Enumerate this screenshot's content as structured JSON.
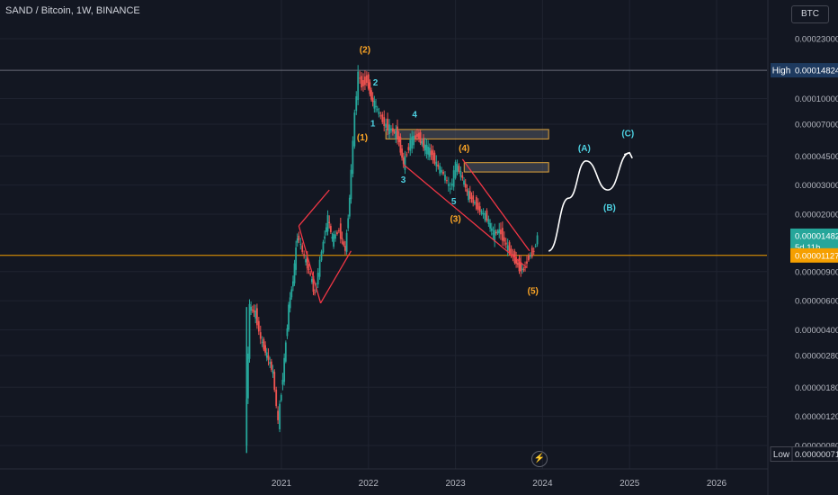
{
  "header": {
    "symbol_title": "SAND / Bitcoin, 1W, BINANCE",
    "currency_button": "BTC"
  },
  "colors": {
    "background": "#131722",
    "grid": "#1f2330",
    "up_candle": "#26a69a",
    "down_candle": "#ef5350",
    "axis_text": "#b2b5be",
    "current_price": "#26a69a",
    "support_line": "#f59f00",
    "wave_orange": "#ffa726",
    "wave_teal": "#4dd0e1",
    "wedge_red": "#f23645",
    "resistance_zone": "#e0a43c"
  },
  "chart_data": {
    "type": "candlestick",
    "timeframe": "1W",
    "exchange": "BINANCE",
    "log_scale": true,
    "grid": true,
    "y_ticks": [
      "0.00023000",
      "0.00010000",
      "0.00007000",
      "0.00004500",
      "0.00003000",
      "0.00002000",
      "0.00000900",
      "0.00000600",
      "0.00000400",
      "0.00000280",
      "0.00000180",
      "0.00000120",
      "0.00000080"
    ],
    "y_tick_values": [
      0.00023,
      0.0001,
      7e-05,
      4.5e-05,
      3e-05,
      2e-05,
      9e-06,
      6e-06,
      4e-06,
      2.8e-06,
      1.8e-06,
      1.2e-06,
      8e-07
    ],
    "x_ticks": [
      "2021",
      "2022",
      "2023",
      "2024",
      "2025",
      "2026"
    ],
    "x_tick_years": [
      2021,
      2022,
      2023,
      2024,
      2025,
      2026
    ],
    "high": {
      "label": "High",
      "value": "0.00014824",
      "num": 0.00014824
    },
    "low": {
      "label": "Low",
      "value": "0.00000071",
      "num": 7.1e-07
    },
    "current_price": {
      "value": "0.00001482",
      "countdown": "5d 11h",
      "num": 1.482e-05
    },
    "support_level": {
      "value": "0.00001127",
      "num": 1.127e-05
    },
    "price_path": [
      [
        2020.6,
        8e-07
      ],
      [
        2020.65,
        5.5e-06
      ],
      [
        2020.72,
        5e-06
      ],
      [
        2020.78,
        3.5e-06
      ],
      [
        2020.85,
        2.8e-06
      ],
      [
        2020.92,
        2.2e-06
      ],
      [
        2020.98,
        1.1e-06
      ],
      [
        2021.05,
        2.6e-06
      ],
      [
        2021.1,
        5.5e-06
      ],
      [
        2021.15,
        8e-06
      ],
      [
        2021.2,
        1.5e-05
      ],
      [
        2021.28,
        1.1e-05
      ],
      [
        2021.35,
        8.5e-06
      ],
      [
        2021.4,
        6.5e-06
      ],
      [
        2021.48,
        1.2e-05
      ],
      [
        2021.55,
        1.9e-05
      ],
      [
        2021.6,
        1.4e-05
      ],
      [
        2021.68,
        1.6e-05
      ],
      [
        2021.75,
        1.2e-05
      ],
      [
        2021.8,
        2.5e-05
      ],
      [
        2021.86,
        8e-05
      ],
      [
        2021.9,
        0.00014
      ],
      [
        2021.94,
        0.00012
      ],
      [
        2022.0,
        0.00013
      ],
      [
        2022.05,
        0.0001
      ],
      [
        2022.12,
        8.5e-05
      ],
      [
        2022.2,
        7e-05
      ],
      [
        2022.28,
        6.5e-05
      ],
      [
        2022.35,
        6e-05
      ],
      [
        2022.42,
        4e-05
      ],
      [
        2022.5,
        5.5e-05
      ],
      [
        2022.58,
        6e-05
      ],
      [
        2022.65,
        5.2e-05
      ],
      [
        2022.72,
        4.8e-05
      ],
      [
        2022.8,
        4e-05
      ],
      [
        2022.88,
        3.5e-05
      ],
      [
        2022.96,
        2.8e-05
      ],
      [
        2023.02,
        4e-05
      ],
      [
        2023.08,
        3.5e-05
      ],
      [
        2023.15,
        2.7e-05
      ],
      [
        2023.22,
        2.4e-05
      ],
      [
        2023.3,
        2.1e-05
      ],
      [
        2023.38,
        1.9e-05
      ],
      [
        2023.45,
        1.5e-05
      ],
      [
        2023.52,
        1.6e-05
      ],
      [
        2023.6,
        1.3e-05
      ],
      [
        2023.68,
        1.1e-05
      ],
      [
        2023.75,
        9.5e-06
      ],
      [
        2023.8,
        9.2e-06
      ],
      [
        2023.86,
        1.1e-05
      ],
      [
        2023.92,
        1.2e-05
      ],
      [
        2023.96,
        1.48e-05
      ]
    ],
    "elliott_waves": [
      {
        "label": "(1)",
        "t": 2021.93,
        "p": 5.6e-05,
        "color": "orange"
      },
      {
        "label": "(2)",
        "t": 2021.96,
        "p": 0.00019,
        "color": "orange"
      },
      {
        "label": "(3)",
        "t": 2023.0,
        "p": 1.8e-05,
        "color": "orange"
      },
      {
        "label": "(4)",
        "t": 2023.1,
        "p": 4.8e-05,
        "color": "orange"
      },
      {
        "label": "(5)",
        "t": 2023.89,
        "p": 6.6e-06,
        "color": "orange"
      },
      {
        "label": "1",
        "t": 2022.05,
        "p": 6.8e-05,
        "color": "teal"
      },
      {
        "label": "2",
        "t": 2022.08,
        "p": 0.00012,
        "color": "teal"
      },
      {
        "label": "3",
        "t": 2022.4,
        "p": 3.1e-05,
        "color": "teal"
      },
      {
        "label": "4",
        "t": 2022.53,
        "p": 7.7e-05,
        "color": "teal"
      },
      {
        "label": "5",
        "t": 2022.98,
        "p": 2.3e-05,
        "color": "teal"
      },
      {
        "label": "(A)",
        "t": 2024.48,
        "p": 4.8e-05,
        "color": "teal"
      },
      {
        "label": "(B)",
        "t": 2024.77,
        "p": 2.1e-05,
        "color": "teal"
      },
      {
        "label": "(C)",
        "t": 2024.98,
        "p": 5.9e-05,
        "color": "teal"
      }
    ],
    "wedges": [
      {
        "upper": [
          [
            2021.2,
            1.7e-05
          ],
          [
            2021.55,
            2.8e-05
          ]
        ],
        "lower": [
          [
            2021.45,
            5.8e-06
          ],
          [
            2021.8,
            1.2e-05
          ]
        ]
      },
      {
        "upper": [
          [
            2023.08,
            4.3e-05
          ],
          [
            2023.85,
            1.2e-05
          ]
        ],
        "lower": [
          [
            2022.4,
            4e-05
          ],
          [
            2023.82,
            9.5e-06
          ]
        ]
      }
    ],
    "resistance_zones": [
      {
        "t0": 2022.2,
        "t1": 2024.07,
        "p_low": 5.7e-05,
        "p_high": 6.5e-05
      },
      {
        "t0": 2023.1,
        "t1": 2024.07,
        "p_low": 3.6e-05,
        "p_high": 4.1e-05
      }
    ],
    "projection_path": [
      [
        2024.07,
        1.2e-05
      ],
      [
        2024.3,
        2.5e-05
      ],
      [
        2024.5,
        4.2e-05
      ],
      [
        2024.75,
        2.8e-05
      ],
      [
        2025.0,
        4.7e-05
      ]
    ]
  }
}
